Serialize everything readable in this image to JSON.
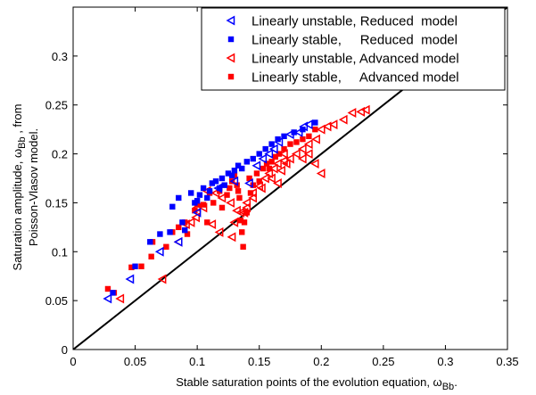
{
  "chart_data": {
    "type": "scatter",
    "xlim": [
      0,
      0.35
    ],
    "ylim": [
      0,
      0.35
    ],
    "xticks": [
      "0",
      "0.05",
      "0.1",
      "0.15",
      "0.2",
      "0.25",
      "0.3",
      "0.35"
    ],
    "yticks": [
      "0",
      "0.05",
      "0.1",
      "0.15",
      "0.2",
      "0.25",
      "0.3"
    ],
    "xlabel": {
      "main": "Stable saturation points of the evolution equation, ω",
      "sub": "Bb",
      "tail": "."
    },
    "ylabel": {
      "line1_main": "Saturation amplitude, ω",
      "line1_sub": "Bb",
      "line1_tail": " , from",
      "line2": "Poisson-Vlasov model."
    },
    "reference_line": {
      "x": [
        0,
        0.35
      ],
      "y": [
        0,
        0.35
      ],
      "color": "#000000"
    },
    "legend_position": "top-right",
    "grid": false,
    "series": [
      {
        "name": "Linearly unstable, Reduced  model",
        "marker": "triangle-left",
        "color": "#0000ff",
        "points": [
          [
            0.028,
            0.052
          ],
          [
            0.046,
            0.072
          ],
          [
            0.07,
            0.1
          ],
          [
            0.085,
            0.11
          ],
          [
            0.1,
            0.14
          ],
          [
            0.117,
            0.165
          ],
          [
            0.13,
            0.172
          ],
          [
            0.142,
            0.17
          ],
          [
            0.148,
            0.188
          ],
          [
            0.153,
            0.195
          ],
          [
            0.158,
            0.2
          ],
          [
            0.162,
            0.205
          ],
          [
            0.166,
            0.212
          ],
          [
            0.175,
            0.22
          ],
          [
            0.182,
            0.222
          ],
          [
            0.186,
            0.228
          ],
          [
            0.19,
            0.23
          ]
        ]
      },
      {
        "name": "Linearly stable,     Reduced  model",
        "marker": "square",
        "color": "#0000ff",
        "points": [
          [
            0.032,
            0.058
          ],
          [
            0.05,
            0.085
          ],
          [
            0.062,
            0.11
          ],
          [
            0.07,
            0.118
          ],
          [
            0.078,
            0.12
          ],
          [
            0.08,
            0.146
          ],
          [
            0.085,
            0.155
          ],
          [
            0.088,
            0.13
          ],
          [
            0.09,
            0.122
          ],
          [
            0.095,
            0.16
          ],
          [
            0.098,
            0.15
          ],
          [
            0.1,
            0.152
          ],
          [
            0.102,
            0.158
          ],
          [
            0.105,
            0.165
          ],
          [
            0.108,
            0.155
          ],
          [
            0.11,
            0.162
          ],
          [
            0.112,
            0.17
          ],
          [
            0.115,
            0.172
          ],
          [
            0.118,
            0.165
          ],
          [
            0.12,
            0.175
          ],
          [
            0.122,
            0.168
          ],
          [
            0.125,
            0.18
          ],
          [
            0.128,
            0.178
          ],
          [
            0.13,
            0.183
          ],
          [
            0.133,
            0.188
          ],
          [
            0.136,
            0.185
          ],
          [
            0.14,
            0.192
          ],
          [
            0.145,
            0.195
          ],
          [
            0.15,
            0.2
          ],
          [
            0.155,
            0.205
          ],
          [
            0.16,
            0.21
          ],
          [
            0.165,
            0.215
          ],
          [
            0.17,
            0.218
          ],
          [
            0.178,
            0.222
          ],
          [
            0.185,
            0.225
          ],
          [
            0.195,
            0.232
          ]
        ]
      },
      {
        "name": "Linearly unstable, Advanced model",
        "marker": "triangle-left",
        "color": "#ff0000",
        "points": [
          [
            0.038,
            0.052
          ],
          [
            0.072,
            0.072
          ],
          [
            0.095,
            0.13
          ],
          [
            0.105,
            0.145
          ],
          [
            0.112,
            0.128
          ],
          [
            0.118,
            0.12
          ],
          [
            0.128,
            0.115
          ],
          [
            0.13,
            0.13
          ],
          [
            0.135,
            0.14
          ],
          [
            0.14,
            0.15
          ],
          [
            0.145,
            0.16
          ],
          [
            0.15,
            0.167
          ],
          [
            0.155,
            0.175
          ],
          [
            0.158,
            0.18
          ],
          [
            0.162,
            0.185
          ],
          [
            0.165,
            0.19
          ],
          [
            0.17,
            0.193
          ],
          [
            0.175,
            0.195
          ],
          [
            0.18,
            0.2
          ],
          [
            0.185,
            0.205
          ],
          [
            0.19,
            0.21
          ],
          [
            0.196,
            0.215
          ],
          [
            0.2,
            0.225
          ],
          [
            0.205,
            0.228
          ],
          [
            0.21,
            0.23
          ],
          [
            0.218,
            0.235
          ],
          [
            0.225,
            0.242
          ],
          [
            0.232,
            0.243
          ],
          [
            0.236,
            0.245
          ],
          [
            0.2,
            0.18
          ],
          [
            0.195,
            0.19
          ],
          [
            0.185,
            0.195
          ],
          [
            0.19,
            0.2
          ],
          [
            0.17,
            0.2
          ],
          [
            0.172,
            0.19
          ],
          [
            0.168,
            0.183
          ],
          [
            0.16,
            0.175
          ],
          [
            0.165,
            0.17
          ],
          [
            0.152,
            0.165
          ],
          [
            0.145,
            0.155
          ],
          [
            0.14,
            0.145
          ],
          [
            0.138,
            0.14
          ],
          [
            0.132,
            0.142
          ],
          [
            0.127,
            0.15
          ],
          [
            0.12,
            0.155
          ],
          [
            0.115,
            0.16
          ],
          [
            0.108,
            0.162
          ],
          [
            0.1,
            0.145
          ],
          [
            0.099,
            0.135
          ],
          [
            0.091,
            0.128
          ],
          [
            0.085,
            0.11
          ]
        ]
      },
      {
        "name": "Linearly stable,     Advanced model",
        "marker": "square",
        "color": "#ff0000",
        "points": [
          [
            0.028,
            0.062
          ],
          [
            0.033,
            0.058
          ],
          [
            0.047,
            0.084
          ],
          [
            0.055,
            0.085
          ],
          [
            0.063,
            0.095
          ],
          [
            0.064,
            0.11
          ],
          [
            0.075,
            0.105
          ],
          [
            0.08,
            0.12
          ],
          [
            0.085,
            0.125
          ],
          [
            0.09,
            0.13
          ],
          [
            0.092,
            0.118
          ],
          [
            0.098,
            0.142
          ],
          [
            0.1,
            0.148
          ],
          [
            0.105,
            0.148
          ],
          [
            0.108,
            0.13
          ],
          [
            0.11,
            0.16
          ],
          [
            0.113,
            0.15
          ],
          [
            0.118,
            0.162
          ],
          [
            0.12,
            0.145
          ],
          [
            0.124,
            0.158
          ],
          [
            0.126,
            0.165
          ],
          [
            0.128,
            0.172
          ],
          [
            0.13,
            0.178
          ],
          [
            0.132,
            0.168
          ],
          [
            0.133,
            0.162
          ],
          [
            0.134,
            0.155
          ],
          [
            0.136,
            0.12
          ],
          [
            0.137,
            0.105
          ],
          [
            0.14,
            0.14
          ],
          [
            0.142,
            0.175
          ],
          [
            0.143,
            0.16
          ],
          [
            0.145,
            0.168
          ],
          [
            0.148,
            0.18
          ],
          [
            0.15,
            0.172
          ],
          [
            0.153,
            0.185
          ],
          [
            0.156,
            0.19
          ],
          [
            0.158,
            0.185
          ],
          [
            0.16,
            0.192
          ],
          [
            0.163,
            0.197
          ],
          [
            0.166,
            0.2
          ],
          [
            0.17,
            0.205
          ],
          [
            0.175,
            0.21
          ],
          [
            0.18,
            0.212
          ],
          [
            0.185,
            0.215
          ],
          [
            0.19,
            0.218
          ],
          [
            0.195,
            0.225
          ],
          [
            0.138,
            0.13
          ],
          [
            0.135,
            0.132
          ]
        ]
      }
    ]
  }
}
